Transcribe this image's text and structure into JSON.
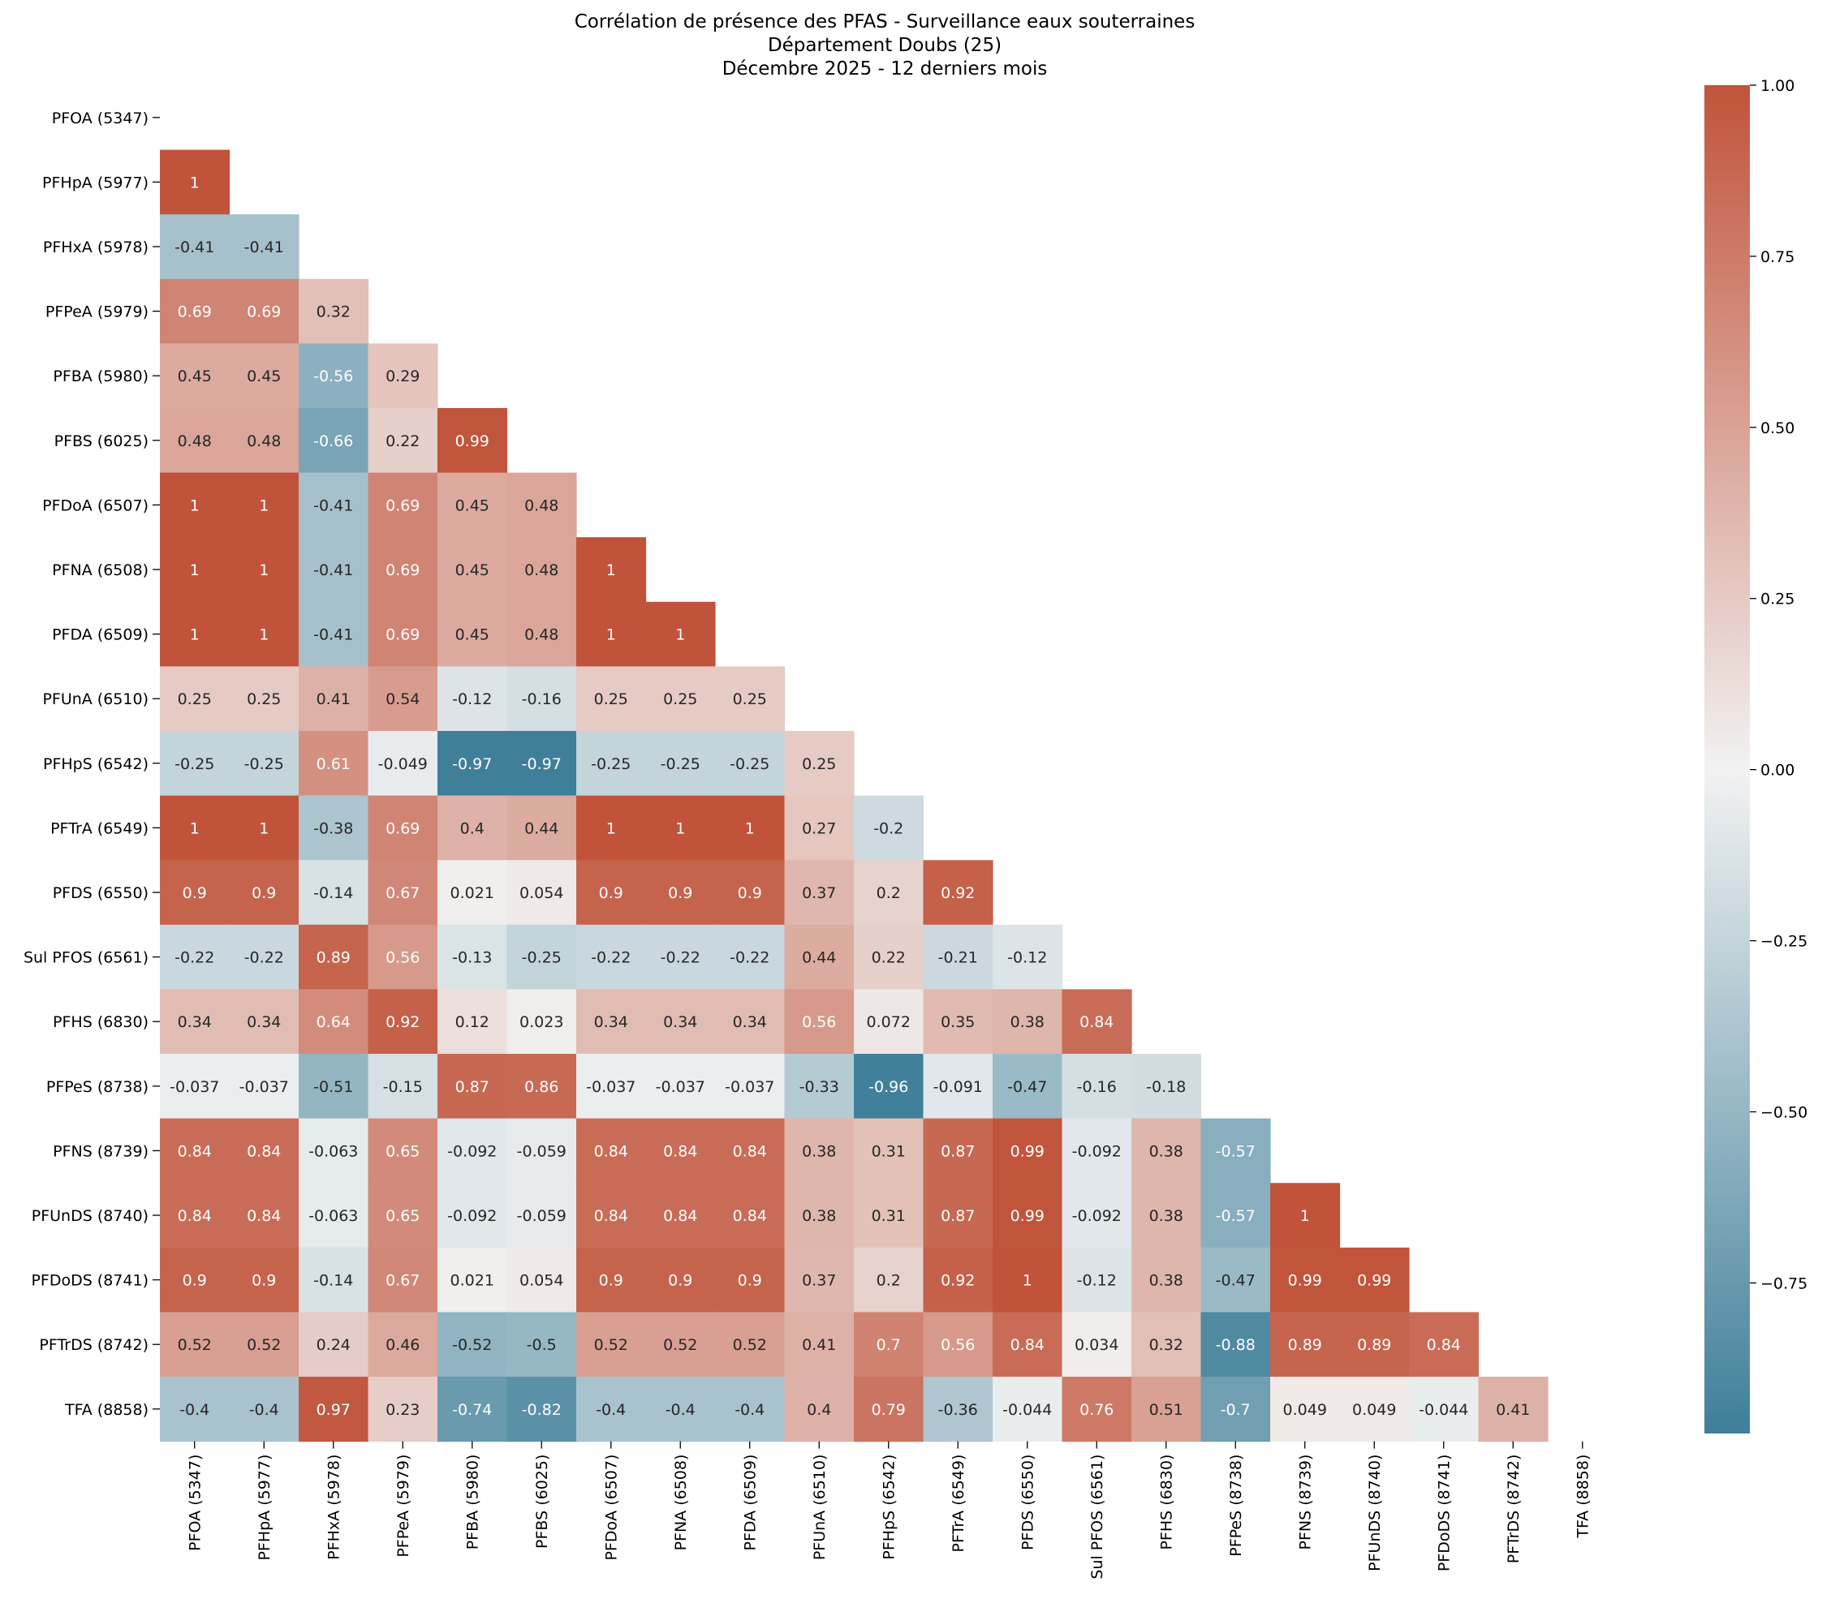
{
  "chart_data": {
    "type": "heatmap",
    "title": [
      "Corrélation de présence des PFAS - Surveillance eaux souterraines",
      "Département Doubs (25)",
      "Décembre 2025 - 12 derniers mois"
    ],
    "mask": "upper-triangle-including-diagonal",
    "row_labels": [
      "PFOA (5347)",
      "PFHpA (5977)",
      "PFHxA (5978)",
      "PFPeA (5979)",
      "PFBA (5980)",
      "PFBS (6025)",
      "PFDoA (6507)",
      "PFNA (6508)",
      "PFDA (6509)",
      "PFUnA (6510)",
      "PFHpS (6542)",
      "PFTrA (6549)",
      "PFDS (6550)",
      "Sul PFOS (6561)",
      "PFHS (6830)",
      "PFPeS (8738)",
      "PFNS (8739)",
      "PFUnDS (8740)",
      "PFDoDS (8741)",
      "PFTrDS (8742)",
      "TFA (8858)"
    ],
    "col_labels": [
      "PFOA (5347)",
      "PFHpA (5977)",
      "PFHxA (5978)",
      "PFPeA (5979)",
      "PFBA (5980)",
      "PFBS (6025)",
      "PFDoA (6507)",
      "PFNA (6508)",
      "PFDA (6509)",
      "PFUnA (6510)",
      "PFHpS (6542)",
      "PFTrA (6549)",
      "PFDS (6550)",
      "Sul PFOS (6561)",
      "PFHS (6830)",
      "PFPeS (8738)",
      "PFNS (8739)",
      "PFUnDS (8740)",
      "PFDoDS (8741)",
      "PFTrDS (8742)",
      "TFA (8858)"
    ],
    "values": [
      [],
      [
        "1"
      ],
      [
        "-0.41",
        "-0.41"
      ],
      [
        "0.69",
        "0.69",
        "0.32"
      ],
      [
        "0.45",
        "0.45",
        "-0.56",
        "0.29"
      ],
      [
        "0.48",
        "0.48",
        "-0.66",
        "0.22",
        "0.99"
      ],
      [
        "1",
        "1",
        "-0.41",
        "0.69",
        "0.45",
        "0.48"
      ],
      [
        "1",
        "1",
        "-0.41",
        "0.69",
        "0.45",
        "0.48",
        "1"
      ],
      [
        "1",
        "1",
        "-0.41",
        "0.69",
        "0.45",
        "0.48",
        "1",
        "1"
      ],
      [
        "0.25",
        "0.25",
        "0.41",
        "0.54",
        "-0.12",
        "-0.16",
        "0.25",
        "0.25",
        "0.25"
      ],
      [
        "-0.25",
        "-0.25",
        "0.61",
        "-0.049",
        "-0.97",
        "-0.97",
        "-0.25",
        "-0.25",
        "-0.25",
        "0.25"
      ],
      [
        "1",
        "1",
        "-0.38",
        "0.69",
        "0.4",
        "0.44",
        "1",
        "1",
        "1",
        "0.27",
        "-0.2"
      ],
      [
        "0.9",
        "0.9",
        "-0.14",
        "0.67",
        "0.021",
        "0.054",
        "0.9",
        "0.9",
        "0.9",
        "0.37",
        "0.2",
        "0.92"
      ],
      [
        "-0.22",
        "-0.22",
        "0.89",
        "0.56",
        "-0.13",
        "-0.25",
        "-0.22",
        "-0.22",
        "-0.22",
        "0.44",
        "0.22",
        "-0.21",
        "-0.12"
      ],
      [
        "0.34",
        "0.34",
        "0.64",
        "0.92",
        "0.12",
        "0.023",
        "0.34",
        "0.34",
        "0.34",
        "0.56",
        "0.072",
        "0.35",
        "0.38",
        "0.84"
      ],
      [
        "-0.037",
        "-0.037",
        "-0.51",
        "-0.15",
        "0.87",
        "0.86",
        "-0.037",
        "-0.037",
        "-0.037",
        "-0.33",
        "-0.96",
        "-0.091",
        "-0.47",
        "-0.16",
        "-0.18"
      ],
      [
        "0.84",
        "0.84",
        "-0.063",
        "0.65",
        "-0.092",
        "-0.059",
        "0.84",
        "0.84",
        "0.84",
        "0.38",
        "0.31",
        "0.87",
        "0.99",
        "-0.092",
        "0.38",
        "-0.57"
      ],
      [
        "0.84",
        "0.84",
        "-0.063",
        "0.65",
        "-0.092",
        "-0.059",
        "0.84",
        "0.84",
        "0.84",
        "0.38",
        "0.31",
        "0.87",
        "0.99",
        "-0.092",
        "0.38",
        "-0.57",
        "1"
      ],
      [
        "0.9",
        "0.9",
        "-0.14",
        "0.67",
        "0.021",
        "0.054",
        "0.9",
        "0.9",
        "0.9",
        "0.37",
        "0.2",
        "0.92",
        "1",
        "-0.12",
        "0.38",
        "-0.47",
        "0.99",
        "0.99"
      ],
      [
        "0.52",
        "0.52",
        "0.24",
        "0.46",
        "-0.52",
        "-0.5",
        "0.52",
        "0.52",
        "0.52",
        "0.41",
        "0.7",
        "0.56",
        "0.84",
        "0.034",
        "0.32",
        "-0.88",
        "0.89",
        "0.89",
        "0.84"
      ],
      [
        "-0.4",
        "-0.4",
        "0.97",
        "0.23",
        "-0.74",
        "-0.82",
        "-0.4",
        "-0.4",
        "-0.4",
        "0.4",
        "0.79",
        "-0.36",
        "-0.044",
        "0.76",
        "0.51",
        "-0.7",
        "0.049",
        "0.049",
        "-0.044",
        "0.41"
      ]
    ],
    "colorbar": {
      "range": [
        -0.97,
        1.0
      ],
      "ticks": [
        1.0,
        0.75,
        0.5,
        0.25,
        0.0,
        -0.25,
        -0.5,
        -0.75
      ],
      "tick_labels": [
        "1.00",
        "0.75",
        "0.50",
        "0.25",
        "0.00",
        "−0.25",
        "−0.50",
        "−0.75"
      ],
      "colormap": "diverging blue-white-red",
      "low_color": "#3f7f99",
      "mid_color": "#f2f2f2",
      "high_color": "#c1533a"
    }
  }
}
